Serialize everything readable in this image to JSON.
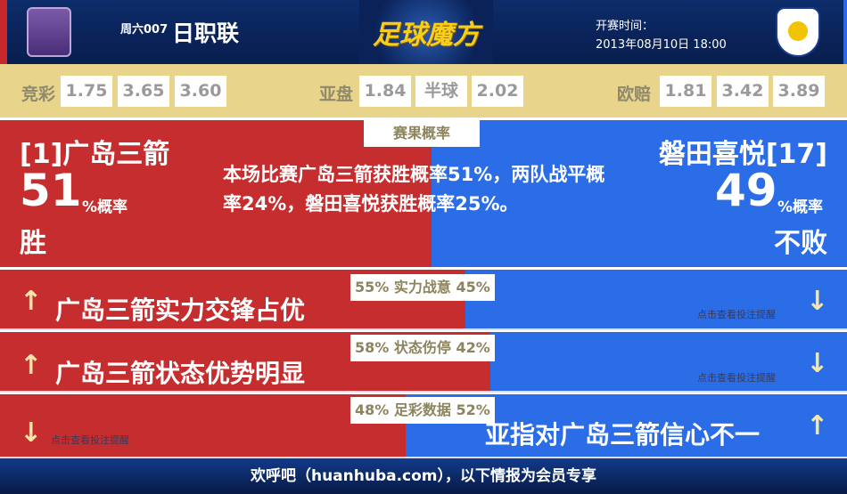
{
  "header": {
    "home_logo": "sanfrecce-hiroshima-logo",
    "away_logo": "jubilo-iwata-logo",
    "match_no": "周六007",
    "league": "日职联",
    "brand": "足球魔方",
    "kickoff_label": "开赛时间：",
    "kickoff_time": "2013年08月10日 18:00"
  },
  "odds": {
    "jingcai": {
      "label": "竞彩",
      "values": [
        "1.75",
        "3.65",
        "3.60"
      ]
    },
    "yapan": {
      "label": "亚盘",
      "values": [
        "1.84",
        "半球",
        "2.02"
      ]
    },
    "ouzhi": {
      "label": "欧赔",
      "values": [
        "1.81",
        "3.42",
        "3.89"
      ]
    }
  },
  "prob": {
    "tag": "赛果概率",
    "home_name": "[1]广岛三箭",
    "home_pct": "51",
    "pct_unit": "%概率",
    "home_result": "胜",
    "away_name": "磐田喜悦[17]",
    "away_pct": "49",
    "away_result": "不败",
    "summary": "本场比赛广岛三箭获胜概率51%，两队战平概率24%，磐田喜悦获胜概率25%。"
  },
  "rows": [
    {
      "tag": "55% 实力战意 45%",
      "home_share": 55,
      "text": "广岛三箭实力交锋占优",
      "hint": "点击查看投注提醒",
      "side": "home"
    },
    {
      "tag": "58% 状态伤停 42%",
      "home_share": 58,
      "text": "广岛三箭状态优势明显",
      "hint": "点击查看投注提醒",
      "side": "home"
    },
    {
      "tag": "48% 足彩数据 52%",
      "home_share": 48,
      "text": "亚指对广岛三箭信心不一",
      "hint": "点击查看投注提醒",
      "side": "away"
    }
  ],
  "colors": {
    "red": "#c62d2e",
    "blue": "#2a6de6",
    "gold": "#e9d48c",
    "navy": "#0a2258"
  },
  "footer": "欢呼吧（huanhuba.com），以下情报为会员专享"
}
